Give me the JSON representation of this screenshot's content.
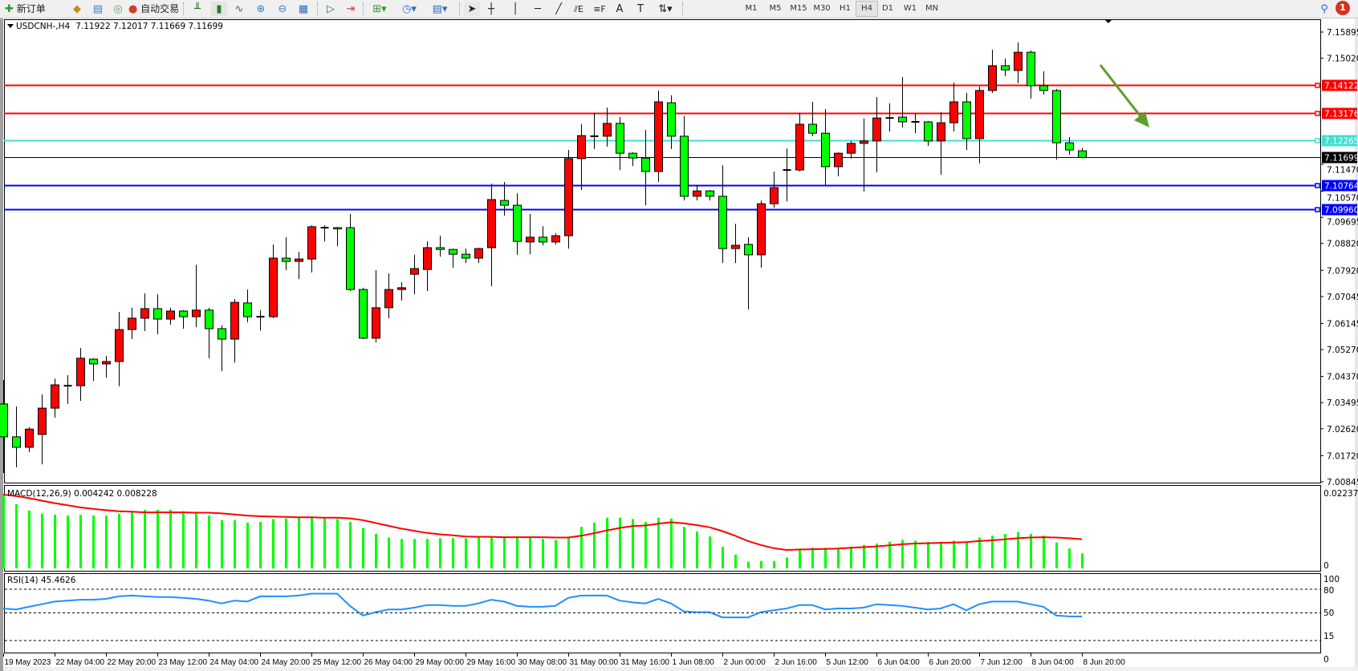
{
  "toolbar": {
    "new_order_label": "新订单",
    "auto_trading_label": "自动交易",
    "timeframes": [
      "M1",
      "M5",
      "M15",
      "M30",
      "H1",
      "H4",
      "D1",
      "W1",
      "MN"
    ],
    "active_timeframe": "H4",
    "notification_count": "1",
    "icons": [
      "new-order-icon",
      "market-watch-icon",
      "navigator-icon",
      "signals-icon",
      "auto-trading-icon",
      "bar-chart-icon",
      "candlestick-icon",
      "line-chart-icon",
      "zoom-in-icon",
      "zoom-out-icon",
      "tile-icon",
      "auto-scroll-icon",
      "chart-shift-icon",
      "indicators-icon",
      "periods-icon",
      "templates-icon",
      "cursor-icon",
      "crosshair-icon",
      "vertical-line-icon",
      "horizontal-line-icon",
      "trendline-icon",
      "equidistant-channel-icon",
      "fibonacci-icon",
      "text-icon",
      "text-label-icon",
      "arrows-icon",
      "search-icon",
      "notification-icon"
    ]
  },
  "header": {
    "symbol": "USDCNH-,H4",
    "ohlc_text": "7.11922 7.12017 7.11669 7.11699"
  },
  "levels": [
    {
      "price": "7.14122",
      "value": 7.14122,
      "color": "#ff0000"
    },
    {
      "price": "7.13176",
      "value": 7.13176,
      "color": "#ff0000"
    },
    {
      "price": "7.12265",
      "value": 7.12265,
      "color": "#40e0d0"
    },
    {
      "price": "7.10764",
      "value": 7.10764,
      "color": "#0000ff"
    },
    {
      "price": "7.09960",
      "value": 7.0996,
      "color": "#0000ff"
    }
  ],
  "current_price": {
    "label": "7.11699",
    "value": 7.11699,
    "color": "#000000"
  },
  "colors": {
    "bull": "#ff0000",
    "bear": "#00ff00",
    "macd_hist": "#00ff00",
    "macd_signal": "#ff0000",
    "rsi": "#1e90ff",
    "arrow": "#5a9e2f"
  },
  "macd_label": "MACD(12,26,9) 0.004242 0.008228",
  "rsi_label": "RSI(14) 45.4626",
  "chart_data": {
    "type": "candlestick",
    "title": "USDCNH-,H4",
    "price_axis_ticks": [
      "7.15895",
      "7.15020",
      "7.11470",
      "7.10570",
      "7.09695",
      "7.08820",
      "7.07920",
      "7.07045",
      "7.06145",
      "7.05270",
      "7.04370",
      "7.03495",
      "7.02620",
      "7.01720",
      "7.00845"
    ],
    "ylim": [
      7.00845,
      7.15895
    ],
    "time_labels": [
      "19 May 2023",
      "22 May 04:00",
      "22 May 20:00",
      "23 May 12:00",
      "24 May 04:00",
      "24 May 20:00",
      "25 May 12:00",
      "26 May 04:00",
      "29 May 00:00",
      "29 May 16:00",
      "30 May 08:00",
      "31 May 00:00",
      "31 May 16:00",
      "1 Jun 08:00",
      "2 Jun 00:00",
      "2 Jun 16:00",
      "5 Jun 12:00",
      "6 Jun 04:00",
      "6 Jun 20:00",
      "7 Jun 12:00",
      "8 Jun 04:00",
      "8 Jun 20:00"
    ],
    "ohlc_fields": [
      "open",
      "high",
      "low",
      "close"
    ],
    "ohlc": [
      [
        7.0345,
        7.0425,
        7.0114,
        7.0235
      ],
      [
        7.0235,
        7.0337,
        7.0133,
        7.02
      ],
      [
        7.02,
        7.0267,
        7.0184,
        7.0261
      ],
      [
        7.0243,
        7.0377,
        7.0143,
        7.0331
      ],
      [
        7.0331,
        7.043,
        7.0299,
        7.0409
      ],
      [
        7.0406,
        7.0441,
        7.0345,
        7.0406
      ],
      [
        7.0406,
        7.0532,
        7.0355,
        7.0498
      ],
      [
        7.0495,
        7.0498,
        7.0422,
        7.0479
      ],
      [
        7.0479,
        7.0506,
        7.0433,
        7.0487
      ],
      [
        7.0487,
        7.0653,
        7.0404,
        7.0594
      ],
      [
        7.0594,
        7.0667,
        7.0562,
        7.0632
      ],
      [
        7.0632,
        7.0715,
        7.0589,
        7.0664
      ],
      [
        7.0664,
        7.0712,
        7.0578,
        7.0629
      ],
      [
        7.0629,
        7.0667,
        7.061,
        7.0656
      ],
      [
        7.0656,
        7.0659,
        7.0597,
        7.0637
      ],
      [
        7.0637,
        7.0811,
        7.0602,
        7.0659
      ],
      [
        7.0659,
        7.0667,
        7.0498,
        7.0597
      ],
      [
        7.0597,
        7.0608,
        7.0455,
        7.0562
      ],
      [
        7.0562,
        7.0696,
        7.0484,
        7.0685
      ],
      [
        7.0683,
        7.0728,
        7.0618,
        7.0637
      ],
      [
        7.0637,
        7.0659,
        7.0591,
        7.0637
      ],
      [
        7.0637,
        7.0879,
        7.0632,
        7.0833
      ],
      [
        7.0833,
        7.0903,
        7.0793,
        7.0822
      ],
      [
        7.0822,
        7.0854,
        7.0763,
        7.083
      ],
      [
        7.083,
        7.0943,
        7.0785,
        7.0938
      ],
      [
        7.0935,
        7.0943,
        7.0889,
        7.0935
      ],
      [
        7.0935,
        7.0938,
        7.0873,
        7.0934
      ],
      [
        7.0935,
        7.0981,
        7.0723,
        7.0728
      ],
      [
        7.0728,
        7.0734,
        7.0562,
        7.0565
      ],
      [
        7.0565,
        7.0793,
        7.0551,
        7.0667
      ],
      [
        7.0667,
        7.0782,
        7.0632,
        7.0728
      ],
      [
        7.0728,
        7.0752,
        7.0691,
        7.0734
      ],
      [
        7.0779,
        7.0844,
        7.0712,
        7.0798
      ],
      [
        7.0795,
        7.0889,
        7.0723,
        7.0868
      ],
      [
        7.0868,
        7.0908,
        7.0838,
        7.0862
      ],
      [
        7.0862,
        7.0865,
        7.0801,
        7.0846
      ],
      [
        7.0846,
        7.0865,
        7.0817,
        7.0833
      ],
      [
        7.0833,
        7.0868,
        7.0817,
        7.0865
      ],
      [
        7.0868,
        7.1082,
        7.0739,
        7.1029
      ],
      [
        7.1026,
        7.1088,
        7.0975,
        7.101
      ],
      [
        7.101,
        7.105,
        7.0844,
        7.0889
      ],
      [
        7.0887,
        7.0981,
        7.0846,
        7.0903
      ],
      [
        7.0903,
        7.094,
        7.0876,
        7.0887
      ],
      [
        7.0887,
        7.0916,
        7.0879,
        7.0908
      ],
      [
        7.0908,
        7.1195,
        7.0865,
        7.1166
      ],
      [
        7.1166,
        7.1281,
        7.1061,
        7.1243
      ],
      [
        7.1241,
        7.1319,
        7.1198,
        7.1241
      ],
      [
        7.1241,
        7.1337,
        7.1206,
        7.1284
      ],
      [
        7.1284,
        7.1305,
        7.1128,
        7.1184
      ],
      [
        7.1184,
        7.1187,
        7.1141,
        7.1168
      ],
      [
        7.1168,
        7.1262,
        7.101,
        7.1123
      ],
      [
        7.1123,
        7.1394,
        7.1088,
        7.1356
      ],
      [
        7.1353,
        7.1378,
        7.1198,
        7.1241
      ],
      [
        7.1241,
        7.1308,
        7.1026,
        7.104
      ],
      [
        7.104,
        7.1077,
        7.1026,
        7.1058
      ],
      [
        7.1058,
        7.1061,
        7.1026,
        7.104
      ],
      [
        7.104,
        7.1144,
        7.0817,
        7.0865
      ],
      [
        7.0865,
        7.0948,
        7.0817,
        7.0876
      ],
      [
        7.0879,
        7.0903,
        7.0661,
        7.0844
      ],
      [
        7.0844,
        7.1026,
        7.0801,
        7.1015
      ],
      [
        7.1015,
        7.1123,
        7.1002,
        7.1069
      ],
      [
        7.1128,
        7.12,
        7.1023,
        7.1128
      ],
      [
        7.1128,
        7.1319,
        7.1123,
        7.1281
      ],
      [
        7.1281,
        7.1356,
        7.1241,
        7.1251
      ],
      [
        7.1251,
        7.1332,
        7.1074,
        7.1139
      ],
      [
        7.1139,
        7.1187,
        7.1107,
        7.1184
      ],
      [
        7.1184,
        7.1225,
        7.1166,
        7.1217
      ],
      [
        7.1217,
        7.13,
        7.1056,
        7.1225
      ],
      [
        7.1225,
        7.1372,
        7.112,
        7.1302
      ],
      [
        7.1302,
        7.1351,
        7.1257,
        7.1302
      ],
      [
        7.1305,
        7.1439,
        7.127,
        7.1289
      ],
      [
        7.1289,
        7.1316,
        7.1251,
        7.1289
      ],
      [
        7.1289,
        7.1292,
        7.1209,
        7.1225
      ],
      [
        7.1225,
        7.1321,
        7.1112,
        7.1286
      ],
      [
        7.1286,
        7.142,
        7.1257,
        7.1356
      ],
      [
        7.1356,
        7.1386,
        7.1195,
        7.1233
      ],
      [
        7.1233,
        7.1407,
        7.115,
        7.1394
      ],
      [
        7.1394,
        7.153,
        7.1386,
        7.1477
      ],
      [
        7.1477,
        7.1501,
        7.1442,
        7.1463
      ],
      [
        7.1461,
        7.1555,
        7.1418,
        7.1522
      ],
      [
        7.1522,
        7.1528,
        7.1367,
        7.141
      ],
      [
        7.141,
        7.1458,
        7.138,
        7.1394
      ],
      [
        7.1394,
        7.1399,
        7.1163,
        7.1219
      ],
      [
        7.1219,
        7.1238,
        7.1179,
        7.1195
      ],
      [
        7.11922,
        7.12017,
        7.11669,
        7.11699
      ]
    ],
    "macd": {
      "axis_ticks": [
        "0.022374",
        "0"
      ],
      "ylim": [
        0,
        0.022374
      ],
      "histogram": [
        0.0206,
        0.0181,
        0.0163,
        0.0154,
        0.0151,
        0.0149,
        0.0151,
        0.0149,
        0.0149,
        0.0154,
        0.0161,
        0.0165,
        0.0165,
        0.0165,
        0.0161,
        0.0156,
        0.0149,
        0.0136,
        0.0136,
        0.0129,
        0.0131,
        0.0139,
        0.0141,
        0.0143,
        0.0143,
        0.0141,
        0.0139,
        0.0131,
        0.0114,
        0.0097,
        0.0087,
        0.0083,
        0.0083,
        0.0083,
        0.0085,
        0.0085,
        0.0085,
        0.0087,
        0.009,
        0.0087,
        0.0087,
        0.0087,
        0.0083,
        0.008,
        0.0087,
        0.0117,
        0.0129,
        0.0143,
        0.0143,
        0.0139,
        0.0131,
        0.0143,
        0.0141,
        0.0117,
        0.0104,
        0.009,
        0.0061,
        0.0039,
        0.0019,
        0.0021,
        0.0021,
        0.0031,
        0.0056,
        0.0058,
        0.0058,
        0.0058,
        0.0061,
        0.0066,
        0.007,
        0.0075,
        0.008,
        0.0078,
        0.0075,
        0.0075,
        0.0078,
        0.0073,
        0.0087,
        0.0092,
        0.0097,
        0.0102,
        0.0097,
        0.0092,
        0.0073,
        0.0056,
        0.004242
      ],
      "signal": [
        0.0208,
        0.0204,
        0.0198,
        0.0191,
        0.0184,
        0.0178,
        0.0172,
        0.0168,
        0.0164,
        0.0161,
        0.016,
        0.0158,
        0.0158,
        0.0158,
        0.0158,
        0.0157,
        0.0157,
        0.0155,
        0.0152,
        0.0149,
        0.0147,
        0.0146,
        0.0145,
        0.0144,
        0.0144,
        0.0143,
        0.0143,
        0.0141,
        0.0136,
        0.0128,
        0.012,
        0.0112,
        0.0106,
        0.01,
        0.0096,
        0.0093,
        0.009,
        0.0089,
        0.0089,
        0.0088,
        0.0088,
        0.0088,
        0.0088,
        0.0087,
        0.0087,
        0.0092,
        0.0099,
        0.0107,
        0.0114,
        0.0119,
        0.0121,
        0.0126,
        0.013,
        0.0127,
        0.0122,
        0.0116,
        0.0105,
        0.0092,
        0.0077,
        0.0066,
        0.0057,
        0.0052,
        0.0053,
        0.0054,
        0.0055,
        0.0056,
        0.0058,
        0.006,
        0.0062,
        0.0065,
        0.0068,
        0.007,
        0.0071,
        0.0072,
        0.0073,
        0.0074,
        0.0077,
        0.0079,
        0.0082,
        0.0085,
        0.0087,
        0.0088,
        0.0087,
        0.0085,
        0.008228
      ]
    },
    "rsi": {
      "axis_ticks": [
        "100",
        "80",
        "50",
        "15",
        "0"
      ],
      "levels": [
        80,
        50,
        15
      ],
      "ylim": [
        0,
        100
      ],
      "values": [
        55.6,
        54.4,
        57.8,
        61,
        64.4,
        65.6,
        66.7,
        66.7,
        67.8,
        71,
        72,
        71,
        70,
        70,
        69,
        67.8,
        65.6,
        62,
        65.6,
        64.4,
        71,
        71,
        71,
        72,
        74.4,
        74.4,
        74.4,
        59,
        46.7,
        51,
        54.4,
        54.4,
        56.7,
        60,
        60,
        59,
        59,
        62,
        66.7,
        64.4,
        59,
        57.8,
        57.8,
        59,
        69,
        72,
        72,
        72,
        65.6,
        63.3,
        62,
        67.8,
        62,
        52,
        51,
        51,
        44.4,
        44.4,
        44.4,
        51,
        53.3,
        55.6,
        60,
        60,
        54.4,
        55.6,
        55.6,
        56.7,
        61,
        60,
        59,
        56.7,
        54.4,
        55.6,
        61,
        53.3,
        61,
        64.4,
        64.4,
        64.4,
        61,
        57.8,
        46.7,
        45.6,
        45.4626
      ]
    }
  }
}
